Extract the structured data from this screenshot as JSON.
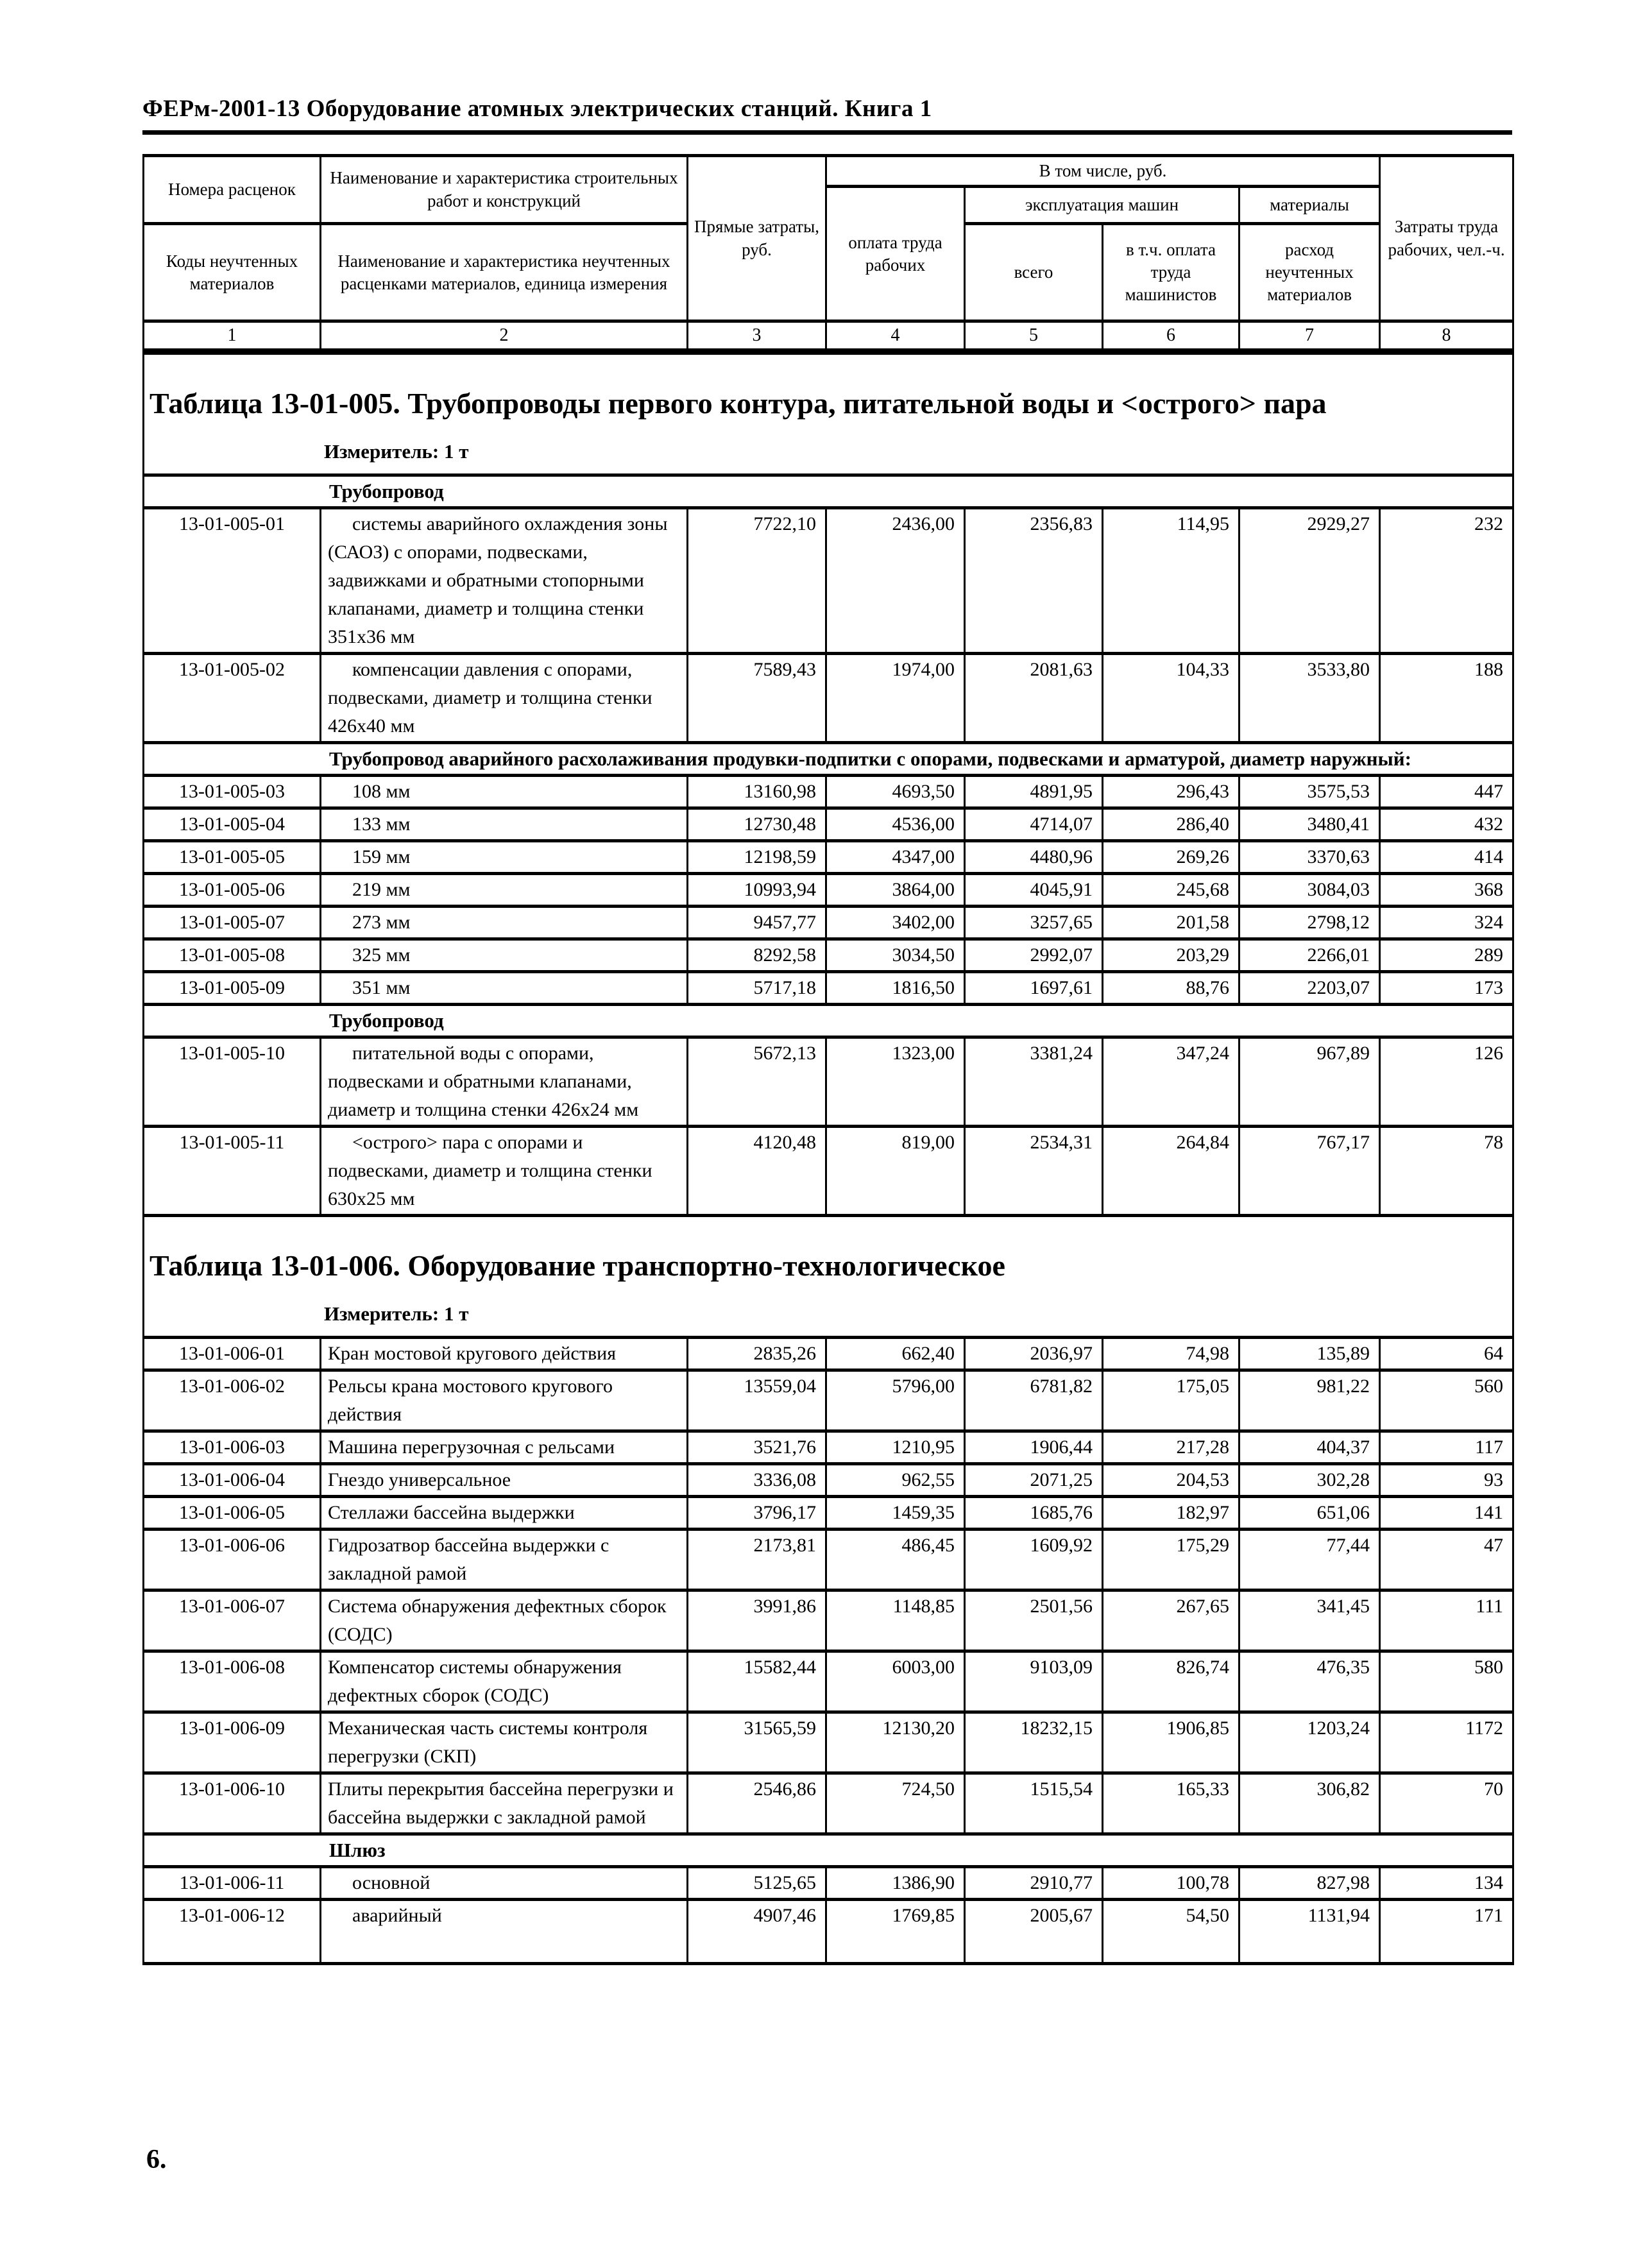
{
  "page": {
    "header": "ФЕРм-2001-13 Оборудование атомных электрических станций. Книга 1",
    "page_number": "6."
  },
  "pricing_header": {
    "col1_top": "Номера расценок",
    "col1_bottom": "Коды неучтенных материалов",
    "col2_top": "Наименование и характеристика строительных работ и конструкций",
    "col2_bottom": "Наименование и характеристика неучтенных расценками материалов, единица измерения",
    "col3": "Прямые затраты, руб.",
    "group_including": "В том числе, руб.",
    "col4": "оплата труда рабочих",
    "group_machines": "эксплуатация машин",
    "col5": "всего",
    "col6": "в т.ч. оплата труда машинистов",
    "group_materials": "материалы",
    "col7": "расход неучтенных материалов",
    "col8": "Затраты труда рабочих, чел.-ч.",
    "numbers": [
      "1",
      "2",
      "3",
      "4",
      "5",
      "6",
      "7",
      "8"
    ]
  },
  "tables": [
    {
      "title": "Таблица 13-01-005. Трубопроводы первого контура, питательной воды и <острого> пара",
      "measure": "Измеритель: 1 т",
      "rows": [
        {
          "type": "section",
          "text": "Трубопровод"
        },
        {
          "type": "data",
          "code": "13-01-005-01",
          "indent": true,
          "name": "системы аварийного охлаждения зоны (САОЗ) с опорами, подвесками, задвижками и обратными стопорными клапанами, диаметр и толщина стенки 351х36 мм",
          "values": [
            "7722,10",
            "2436,00",
            "2356,83",
            "114,95",
            "2929,27",
            "232"
          ]
        },
        {
          "type": "data",
          "code": "13-01-005-02",
          "indent": true,
          "name": "компенсации давления с опорами, подвесками, диаметр и толщина стенки 426х40 мм",
          "values": [
            "7589,43",
            "1974,00",
            "2081,63",
            "104,33",
            "3533,80",
            "188"
          ]
        },
        {
          "type": "section",
          "text": "Трубопровод аварийного расхолаживания продувки-подпитки с опорами, подвесками и арматурой, диаметр наружный:"
        },
        {
          "type": "data",
          "code": "13-01-005-03",
          "indent": true,
          "name": "108 мм",
          "values": [
            "13160,98",
            "4693,50",
            "4891,95",
            "296,43",
            "3575,53",
            "447"
          ]
        },
        {
          "type": "data",
          "code": "13-01-005-04",
          "indent": true,
          "name": "133 мм",
          "values": [
            "12730,48",
            "4536,00",
            "4714,07",
            "286,40",
            "3480,41",
            "432"
          ]
        },
        {
          "type": "data",
          "code": "13-01-005-05",
          "indent": true,
          "name": "159 мм",
          "values": [
            "12198,59",
            "4347,00",
            "4480,96",
            "269,26",
            "3370,63",
            "414"
          ]
        },
        {
          "type": "data",
          "code": "13-01-005-06",
          "indent": true,
          "name": "219 мм",
          "values": [
            "10993,94",
            "3864,00",
            "4045,91",
            "245,68",
            "3084,03",
            "368"
          ]
        },
        {
          "type": "data",
          "code": "13-01-005-07",
          "indent": true,
          "name": "273 мм",
          "values": [
            "9457,77",
            "3402,00",
            "3257,65",
            "201,58",
            "2798,12",
            "324"
          ]
        },
        {
          "type": "data",
          "code": "13-01-005-08",
          "indent": true,
          "name": "325 мм",
          "values": [
            "8292,58",
            "3034,50",
            "2992,07",
            "203,29",
            "2266,01",
            "289"
          ]
        },
        {
          "type": "data",
          "code": "13-01-005-09",
          "indent": true,
          "name": "351 мм",
          "values": [
            "5717,18",
            "1816,50",
            "1697,61",
            "88,76",
            "2203,07",
            "173"
          ]
        },
        {
          "type": "section",
          "text": "Трубопровод"
        },
        {
          "type": "data",
          "code": "13-01-005-10",
          "indent": true,
          "name": "питательной воды с опорами, подвесками и обратными клапанами, диаметр и толщина стенки 426х24 мм",
          "values": [
            "5672,13",
            "1323,00",
            "3381,24",
            "347,24",
            "967,89",
            "126"
          ]
        },
        {
          "type": "data",
          "code": "13-01-005-11",
          "indent": true,
          "name": "<острого> пара с опорами и подвесками, диаметр и толщина стенки 630х25 мм",
          "values": [
            "4120,48",
            "819,00",
            "2534,31",
            "264,84",
            "767,17",
            "78"
          ]
        }
      ]
    },
    {
      "title": "Таблица 13-01-006. Оборудование транспортно-технологическое",
      "measure": "Измеритель: 1 т",
      "rows": [
        {
          "type": "data",
          "code": "13-01-006-01",
          "name": "Кран мостовой кругового действия",
          "values": [
            "2835,26",
            "662,40",
            "2036,97",
            "74,98",
            "135,89",
            "64"
          ]
        },
        {
          "type": "data",
          "code": "13-01-006-02",
          "name": "Рельсы крана мостового кругового действия",
          "values": [
            "13559,04",
            "5796,00",
            "6781,82",
            "175,05",
            "981,22",
            "560"
          ]
        },
        {
          "type": "data",
          "code": "13-01-006-03",
          "name": "Машина перегрузочная с рельсами",
          "values": [
            "3521,76",
            "1210,95",
            "1906,44",
            "217,28",
            "404,37",
            "117"
          ]
        },
        {
          "type": "data",
          "code": "13-01-006-04",
          "name": "Гнездо универсальное",
          "values": [
            "3336,08",
            "962,55",
            "2071,25",
            "204,53",
            "302,28",
            "93"
          ]
        },
        {
          "type": "data",
          "code": "13-01-006-05",
          "name": "Стеллажи бассейна выдержки",
          "values": [
            "3796,17",
            "1459,35",
            "1685,76",
            "182,97",
            "651,06",
            "141"
          ]
        },
        {
          "type": "data",
          "code": "13-01-006-06",
          "name": "Гидрозатвор бассейна выдержки с закладной рамой",
          "values": [
            "2173,81",
            "486,45",
            "1609,92",
            "175,29",
            "77,44",
            "47"
          ]
        },
        {
          "type": "data",
          "code": "13-01-006-07",
          "name": "Система обнаружения дефектных сборок (СОДС)",
          "values": [
            "3991,86",
            "1148,85",
            "2501,56",
            "267,65",
            "341,45",
            "111"
          ]
        },
        {
          "type": "data",
          "code": "13-01-006-08",
          "name": "Компенсатор системы обнаружения дефектных сборок (СОДС)",
          "values": [
            "15582,44",
            "6003,00",
            "9103,09",
            "826,74",
            "476,35",
            "580"
          ]
        },
        {
          "type": "data",
          "code": "13-01-006-09",
          "name": "Механическая часть системы контроля перегрузки (СКП)",
          "values": [
            "31565,59",
            "12130,20",
            "18232,15",
            "1906,85",
            "1203,24",
            "1172"
          ]
        },
        {
          "type": "data",
          "code": "13-01-006-10",
          "name": "Плиты перекрытия бассейна перегрузки и бассейна выдержки с закладной рамой",
          "values": [
            "2546,86",
            "724,50",
            "1515,54",
            "165,33",
            "306,82",
            "70"
          ]
        },
        {
          "type": "section",
          "text": "Шлюз"
        },
        {
          "type": "data",
          "code": "13-01-006-11",
          "indent": true,
          "name": "основной",
          "values": [
            "5125,65",
            "1386,90",
            "2910,77",
            "100,78",
            "827,98",
            "134"
          ]
        },
        {
          "type": "data",
          "code": "13-01-006-12",
          "indent": true,
          "pad": true,
          "name": "аварийный",
          "values": [
            "4907,46",
            "1769,85",
            "2005,67",
            "54,50",
            "1131,94",
            "171"
          ]
        }
      ]
    }
  ]
}
